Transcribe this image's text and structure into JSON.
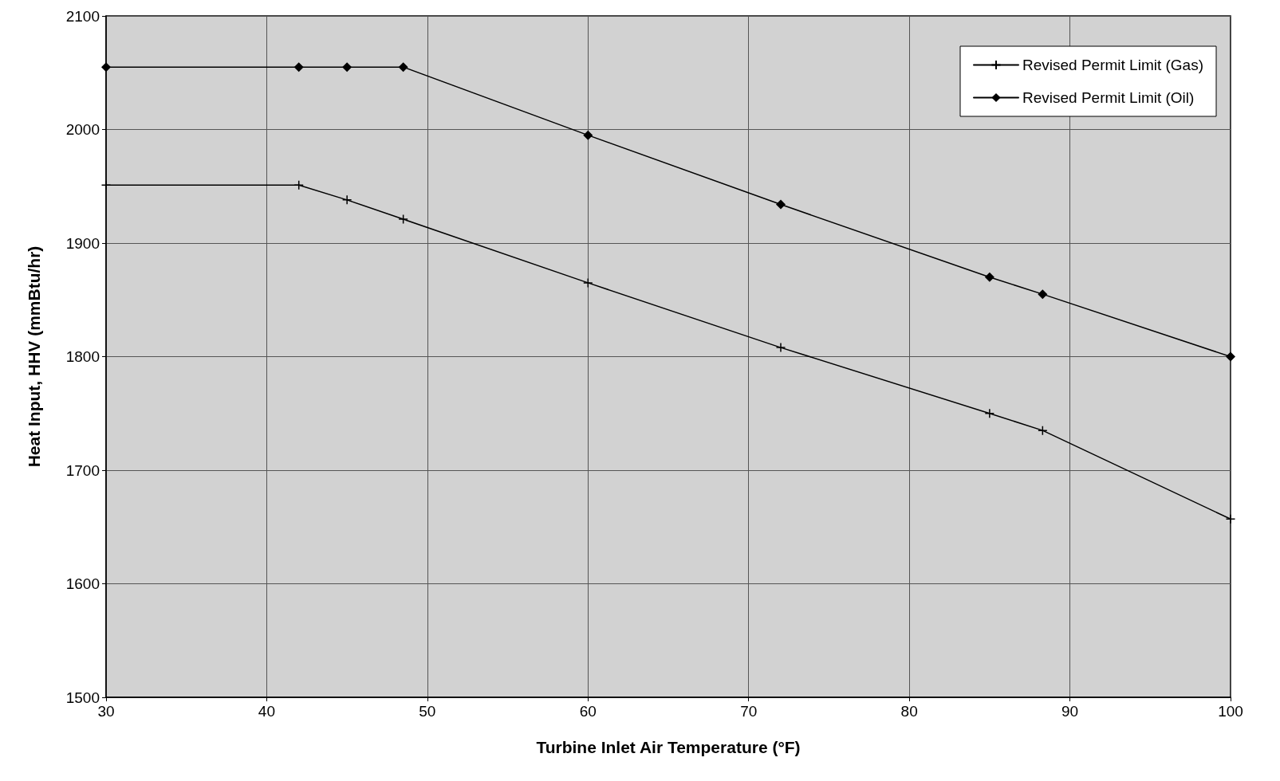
{
  "chart_data": {
    "type": "line",
    "xlabel": "Turbine Inlet Air Temperature (°F)",
    "ylabel": "Heat Input, HHV (mmBtu/hr)",
    "xlim": [
      30,
      100
    ],
    "xticks": [
      30,
      40,
      50,
      60,
      70,
      80,
      90,
      100
    ],
    "ylim": [
      1500,
      2100
    ],
    "yticks": [
      1500,
      1600,
      1700,
      1800,
      1900,
      2000,
      2100
    ],
    "grid": true,
    "legend": "top right",
    "line_style": "solid",
    "series": [
      {
        "name": "Revised Permit Limit (Gas)",
        "color": "#000000",
        "marker": "cross",
        "x": [
          30,
          42,
          45,
          48.5,
          60,
          72,
          85,
          88.3,
          100
        ],
        "values": [
          1951,
          1951,
          1938,
          1921,
          1865,
          1808,
          1750,
          1735,
          1657
        ]
      },
      {
        "name": "Revised Permit Limit (Oil)",
        "color": "#000000",
        "marker": "diamond",
        "x": [
          30,
          42,
          45,
          48.5,
          60,
          72,
          85,
          88.3,
          100
        ],
        "values": [
          2055,
          2055,
          2055,
          2055,
          1995,
          1934,
          1870,
          1855,
          1800
        ]
      }
    ]
  }
}
